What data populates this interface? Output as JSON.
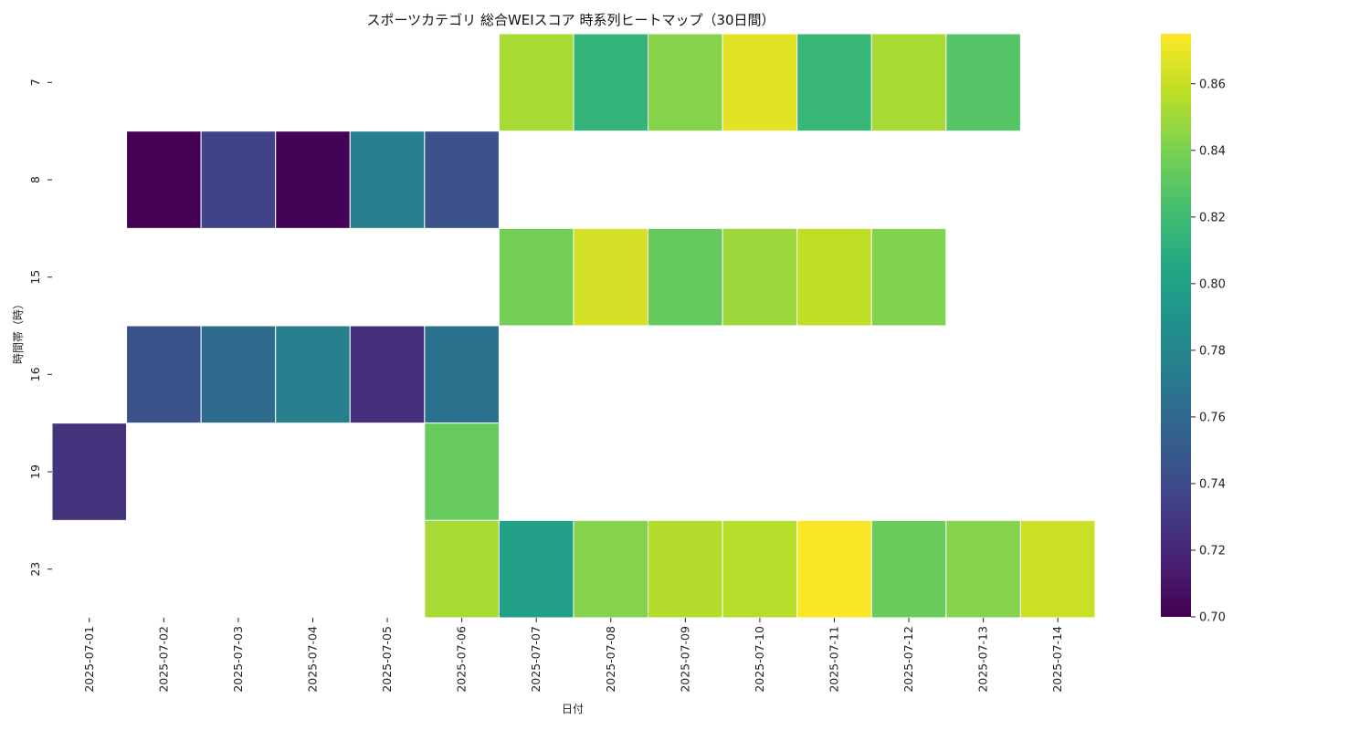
{
  "chart_data": {
    "type": "heatmap",
    "title": "スポーツカテゴリ 総合WEIスコア 時系列ヒートマップ（30日間）",
    "xlabel": "日付",
    "ylabel": "時間帯（時）",
    "x_categories": [
      "2025-07-01",
      "2025-07-02",
      "2025-07-03",
      "2025-07-04",
      "2025-07-05",
      "2025-07-06",
      "2025-07-07",
      "2025-07-08",
      "2025-07-09",
      "2025-07-10",
      "2025-07-11",
      "2025-07-12",
      "2025-07-13",
      "2025-07-14"
    ],
    "y_categories": [
      "7",
      "8",
      "15",
      "16",
      "19",
      "23"
    ],
    "values": [
      [
        null,
        null,
        null,
        null,
        null,
        null,
        0.852,
        0.815,
        0.843,
        0.868,
        0.817,
        0.852,
        0.828,
        null
      ],
      [
        null,
        0.7,
        0.735,
        0.701,
        0.776,
        0.744,
        null,
        null,
        null,
        null,
        null,
        null,
        null,
        null
      ],
      [
        null,
        null,
        null,
        null,
        null,
        null,
        0.838,
        0.864,
        0.833,
        0.849,
        0.858,
        0.842,
        null,
        null
      ],
      [
        null,
        0.745,
        0.761,
        0.775,
        0.724,
        0.766,
        null,
        null,
        null,
        null,
        null,
        null,
        null,
        null
      ],
      [
        0.727,
        null,
        null,
        null,
        null,
        0.834,
        null,
        null,
        null,
        null,
        null,
        null,
        null,
        null
      ],
      [
        null,
        null,
        null,
        null,
        null,
        0.852,
        0.799,
        0.843,
        0.855,
        0.856,
        0.874,
        0.835,
        0.843,
        0.861
      ]
    ],
    "colorbar": {
      "colormap": "viridis",
      "range": [
        0.7,
        0.875
      ],
      "ticks": [
        "0.70",
        "0.72",
        "0.74",
        "0.76",
        "0.78",
        "0.80",
        "0.82",
        "0.84",
        "0.86"
      ]
    }
  }
}
